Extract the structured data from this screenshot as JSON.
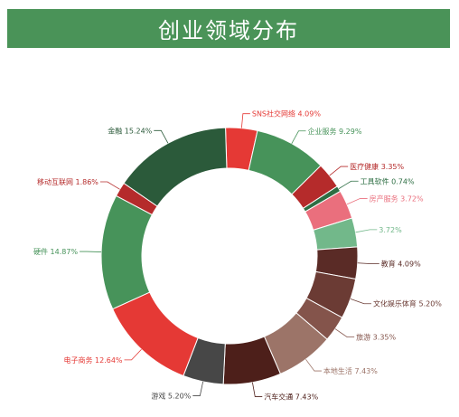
{
  "chart_data": {
    "type": "pie",
    "title": "创业领域分布",
    "donut": true,
    "slices": [
      {
        "label": "SNS社交网络",
        "value": 4.09,
        "display": "4.09%",
        "color": "#e53935",
        "label_color": "#e53935"
      },
      {
        "label": "企业服务",
        "value": 9.29,
        "display": "9.29%",
        "color": "#47935a",
        "label_color": "#47935a"
      },
      {
        "label": "医疗健康",
        "value": 3.35,
        "display": "3.35%",
        "color": "#b52b2b",
        "label_color": "#b52b2b"
      },
      {
        "label": "工具软件",
        "value": 0.74,
        "display": "0.74%",
        "color": "#2d6e43",
        "label_color": "#2d6e43"
      },
      {
        "label": "房产服务",
        "value": 3.72,
        "display": "3.72%",
        "color": "#ea6f7d",
        "label_color": "#ea6f7d"
      },
      {
        "label": "",
        "value": 3.72,
        "display": "3.72%",
        "color": "#72b88a",
        "label_color": "#72b88a"
      },
      {
        "label": "教育",
        "value": 4.09,
        "display": "4.09%",
        "color": "#5a2b26",
        "label_color": "#5a2b26"
      },
      {
        "label": "文化娱乐体育",
        "value": 5.2,
        "display": "5.20%",
        "color": "#6b3b34",
        "label_color": "#6b3b34"
      },
      {
        "label": "旅游",
        "value": 3.35,
        "display": "3.35%",
        "color": "#84544b",
        "label_color": "#84544b"
      },
      {
        "label": "本地生活",
        "value": 7.43,
        "display": "7.43%",
        "color": "#9c7468",
        "label_color": "#9c7468"
      },
      {
        "label": "汽车交通",
        "value": 7.43,
        "display": "7.43%",
        "color": "#4d1f1a",
        "label_color": "#4d1f1a"
      },
      {
        "label": "游戏",
        "value": 5.2,
        "display": "5.20%",
        "color": "#474747",
        "label_color": "#474747"
      },
      {
        "label": "电子商务",
        "value": 12.64,
        "display": "12.64%",
        "color": "#e53935",
        "label_color": "#e53935"
      },
      {
        "label": "硬件",
        "value": 14.87,
        "display": "14.87%",
        "color": "#47935a",
        "label_color": "#47935a"
      },
      {
        "label": "移动互联网",
        "value": 1.86,
        "display": "1.86%",
        "color": "#b52b2b",
        "label_color": "#b52b2b"
      },
      {
        "label": "金融",
        "value": 15.24,
        "display": "15.24%",
        "color": "#2b5a3a",
        "label_color": "#2b5a3a"
      }
    ]
  }
}
